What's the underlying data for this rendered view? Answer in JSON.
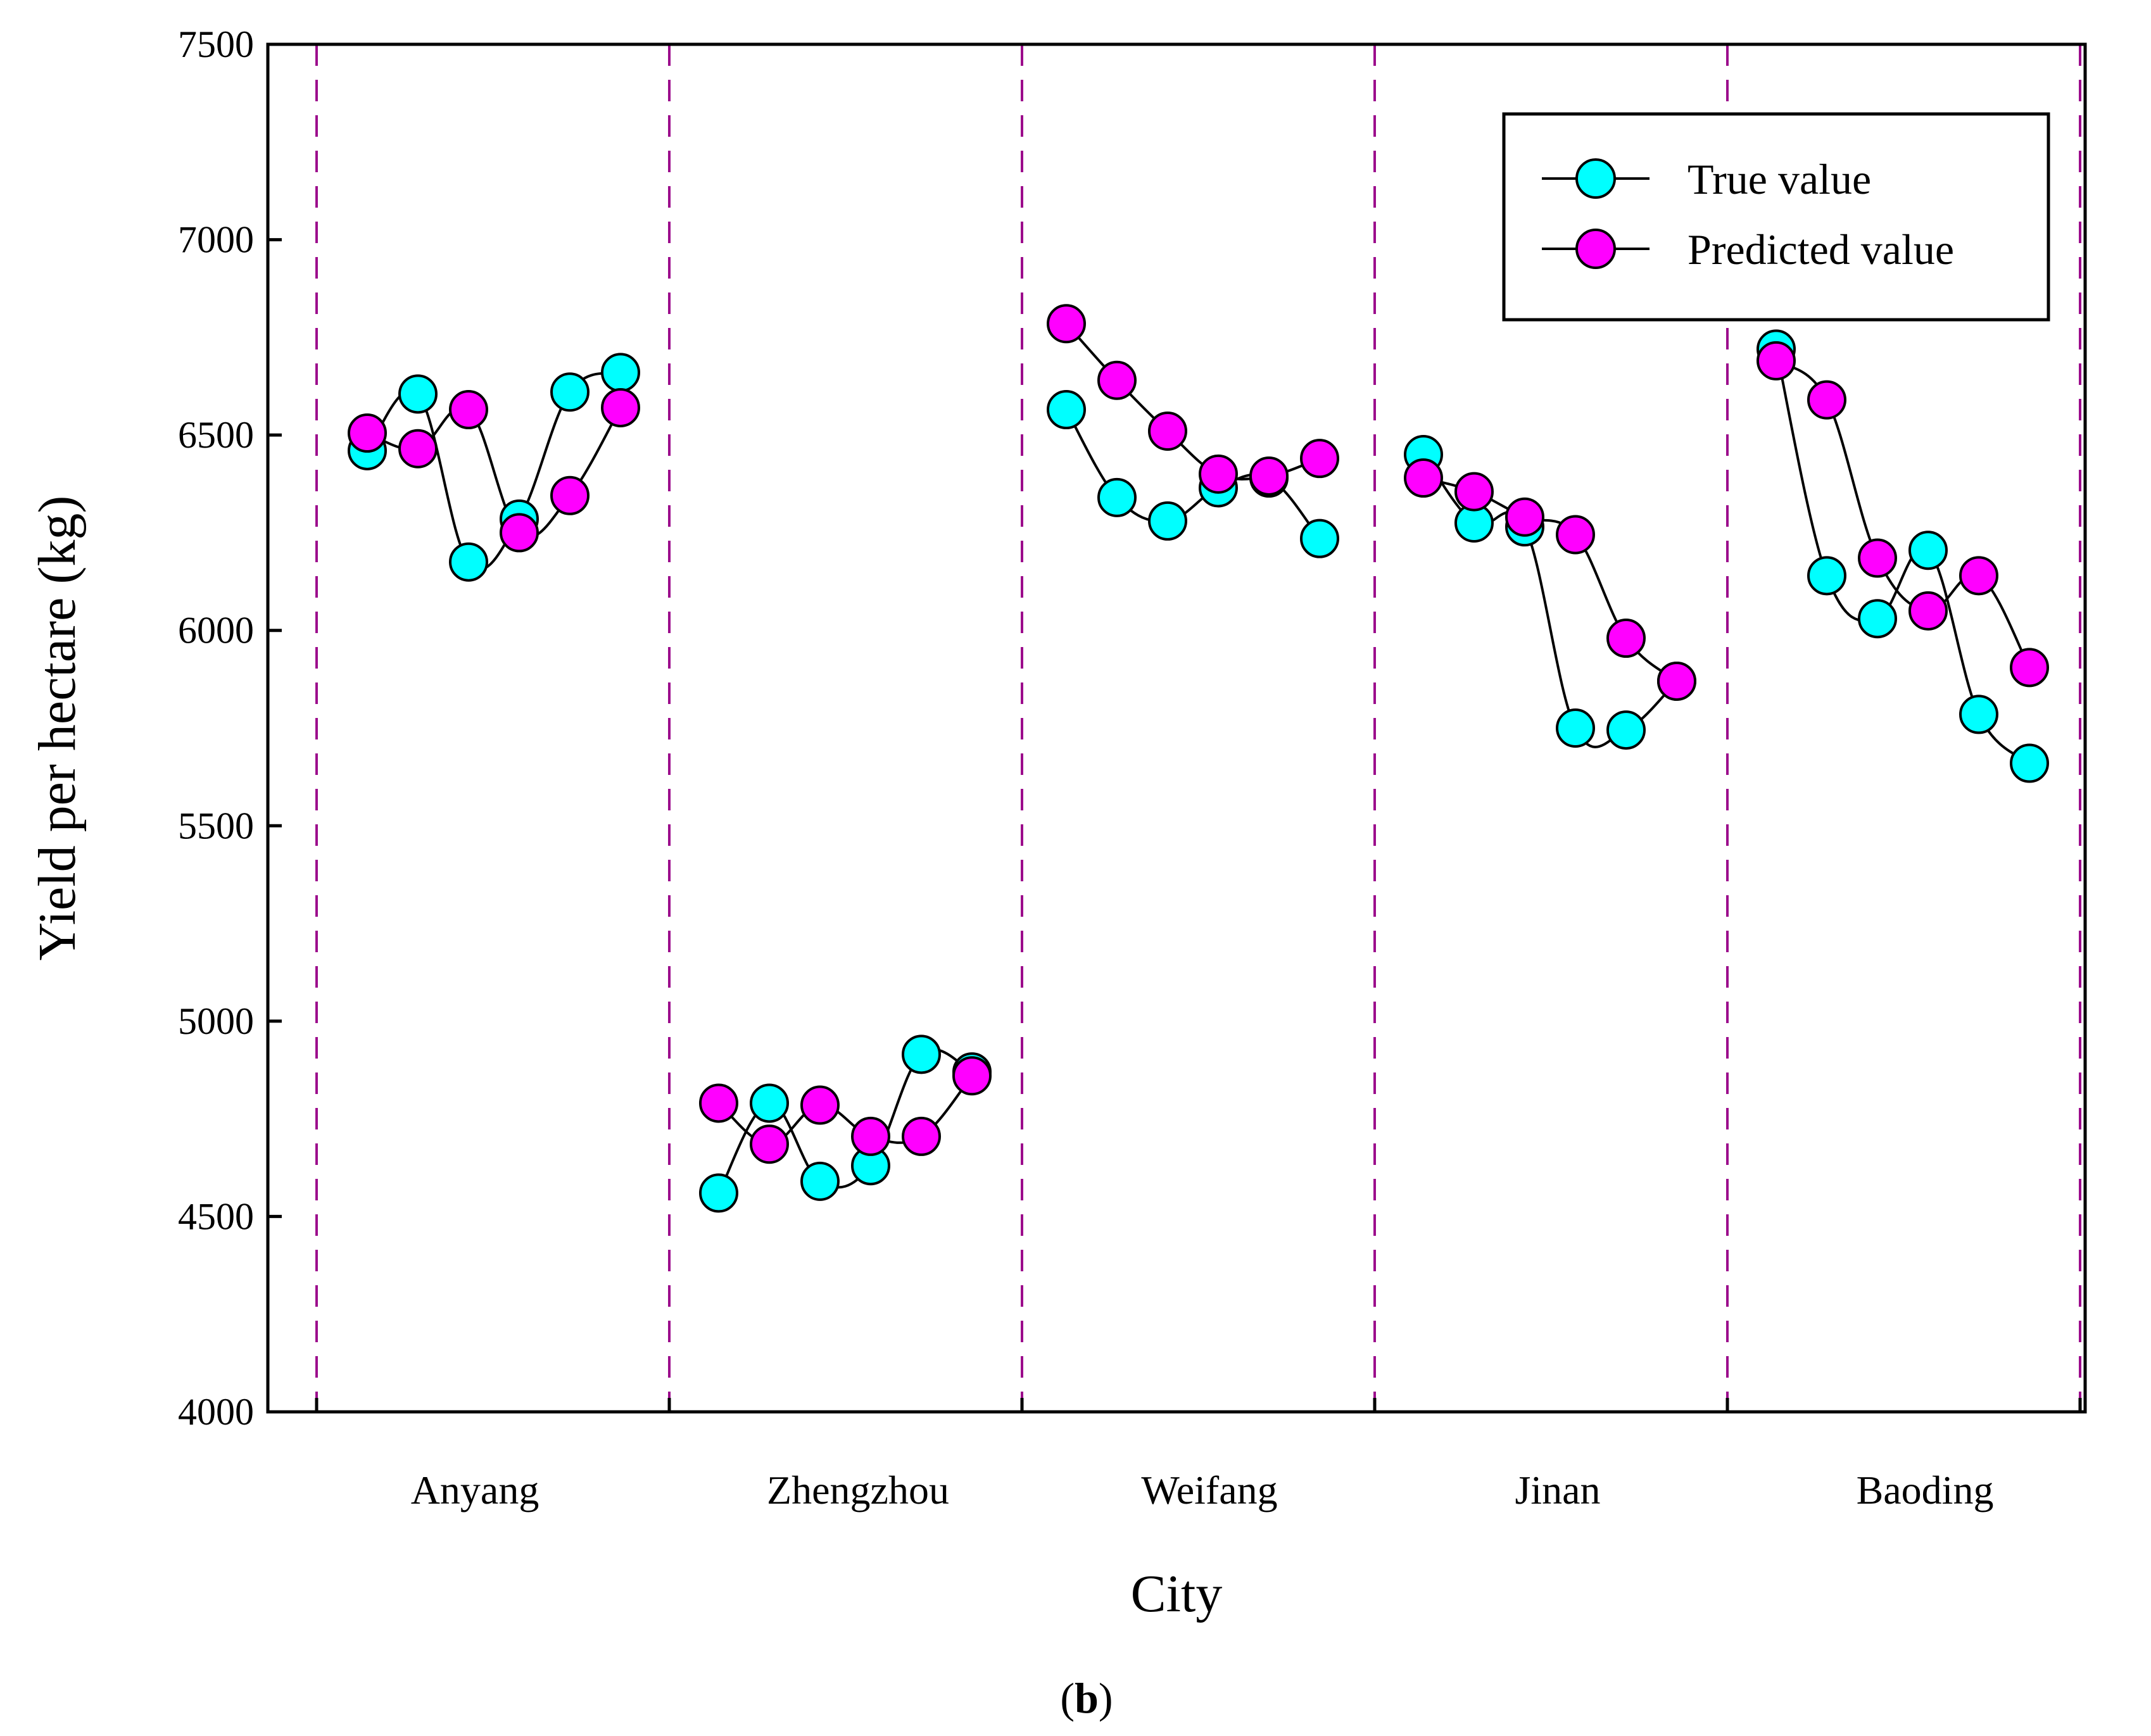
{
  "chart_data": {
    "type": "line",
    "xlabel": "City",
    "ylabel": "Yield per hectare (kg)",
    "ylim": [
      4000,
      7500
    ],
    "yticks": [
      4000,
      4500,
      5000,
      5500,
      6000,
      6500,
      7000,
      7500
    ],
    "categories": [
      "Anyang",
      "Zhengzhou",
      "Weifang",
      "Jinan",
      "Baoding"
    ],
    "caption": {
      "open": "(",
      "letter": "b",
      "close": ")"
    },
    "legend": {
      "placement": "top-right"
    },
    "colors": {
      "true": "#00ffff",
      "predicted": "#ff00ff",
      "divider": "#9c0c8c",
      "line": "#000000"
    },
    "series": [
      {
        "name": "True value",
        "key": "true",
        "groups": [
          [
            6460,
            6605,
            6175,
            6285,
            6610,
            6660
          ],
          [
            4560,
            4790,
            4590,
            4630,
            4915,
            4870
          ],
          [
            6565,
            6340,
            6280,
            6365,
            6390,
            6235
          ],
          [
            6450,
            6275,
            6265,
            5750,
            5745,
            5870
          ],
          [
            6720,
            6140,
            6030,
            6205,
            5785,
            5660
          ]
        ]
      },
      {
        "name": "Predicted value",
        "key": "predicted",
        "groups": [
          [
            6505,
            6465,
            6565,
            6250,
            6345,
            6570
          ],
          [
            4790,
            4685,
            4785,
            4705,
            4705,
            4860
          ],
          [
            6785,
            6640,
            6510,
            6400,
            6395,
            6440
          ],
          [
            6390,
            6355,
            6290,
            6245,
            5980,
            5870
          ],
          [
            6690,
            6590,
            6185,
            6050,
            6140,
            5905
          ]
        ]
      }
    ]
  }
}
